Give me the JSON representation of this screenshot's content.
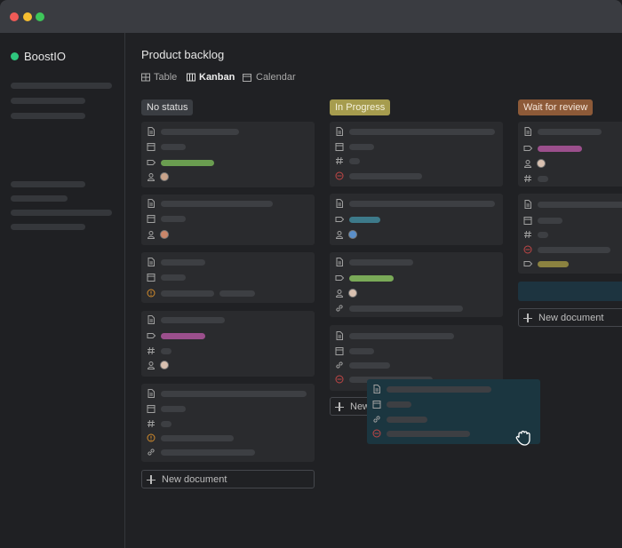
{
  "app": {
    "name": "BoostIO"
  },
  "header": {
    "title": "Product backlog",
    "views": [
      "Table",
      "Kanban",
      "Calendar"
    ]
  },
  "columns": [
    {
      "label": "No status",
      "new_button": "New document"
    },
    {
      "label": "In Progress",
      "new_button": "New document"
    },
    {
      "label": "Wait for review",
      "new_button": "New document"
    }
  ]
}
